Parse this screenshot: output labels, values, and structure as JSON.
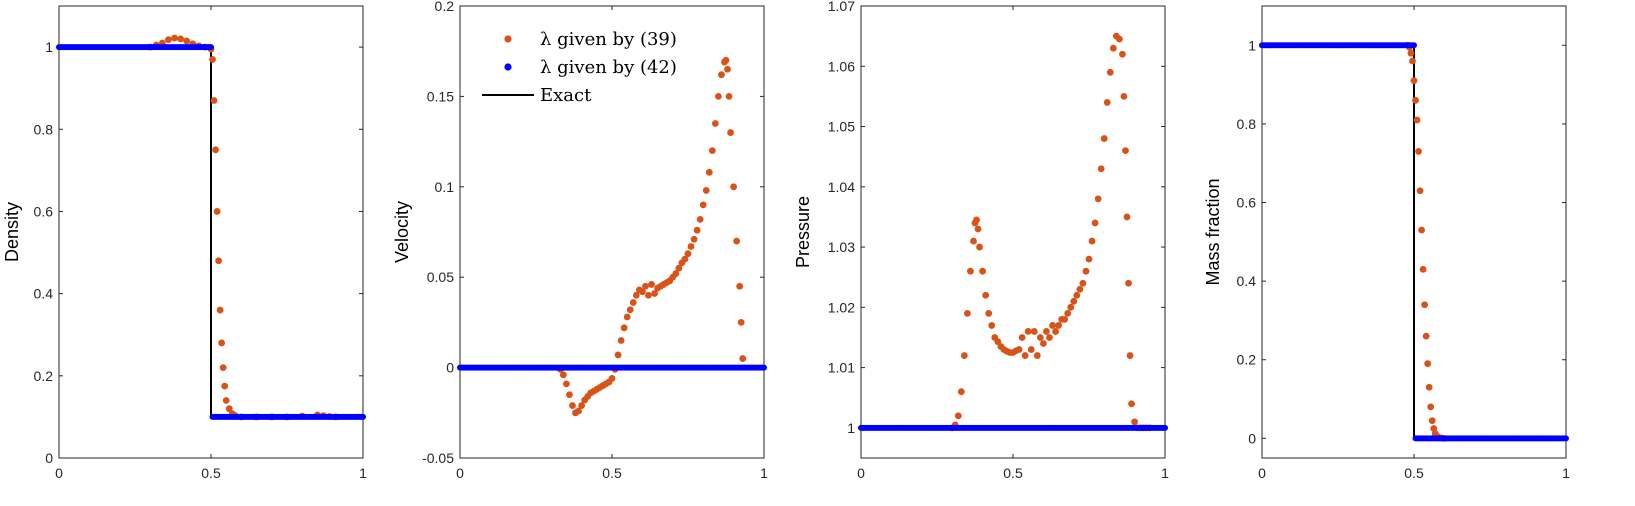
{
  "colors": {
    "orange": "#D95319",
    "blue": "#0000FF",
    "exact": "#000000",
    "axis": "#262626"
  },
  "legend": [
    {
      "label": "λ given by (39)",
      "kind": "marker",
      "color": "#D95319"
    },
    {
      "label": "λ given by (42)",
      "kind": "marker",
      "color": "#0000FF"
    },
    {
      "label": "Exact",
      "kind": "line",
      "color": "#000000"
    }
  ],
  "chart_data": [
    {
      "type": "scatter",
      "ylabel": "Density",
      "xlim": [
        0,
        1
      ],
      "ylim": [
        0,
        1.1
      ],
      "xticks": [
        0,
        0.5,
        1
      ],
      "xtick_labels": [
        "0",
        "0.5",
        "1"
      ],
      "yticks": [
        0,
        0.2,
        0.4,
        0.6,
        0.8,
        1
      ],
      "ytick_labels": [
        "0",
        "0.2",
        "0.4",
        "0.6",
        "0.8",
        "1"
      ],
      "exact": {
        "x": [
          0,
          0.5,
          0.5,
          1
        ],
        "y": [
          1,
          1,
          0.1,
          0.1
        ]
      },
      "series_blue_desc": {
        "name": "λ given by (42)",
        "segments": [
          [
            0,
            0.5,
            1
          ],
          [
            0.5,
            1,
            0.1
          ]
        ],
        "jump": {
          "x": 0.5,
          "from": 1,
          "to": 0.1
        }
      },
      "series_orange": {
        "name": "λ given by (39)",
        "x": [
          0.3,
          0.32,
          0.34,
          0.36,
          0.38,
          0.4,
          0.42,
          0.44,
          0.46,
          0.48,
          0.5,
          0.505,
          0.51,
          0.515,
          0.52,
          0.525,
          0.53,
          0.535,
          0.54,
          0.545,
          0.55,
          0.56,
          0.57,
          0.58,
          0.6,
          0.65,
          0.7,
          0.75,
          0.8,
          0.85,
          0.87,
          0.89,
          0.91
        ],
        "y": [
          1.0,
          1.005,
          1.01,
          1.018,
          1.022,
          1.02,
          1.015,
          1.008,
          1.003,
          1.0,
          0.995,
          0.97,
          0.87,
          0.75,
          0.6,
          0.48,
          0.36,
          0.28,
          0.22,
          0.175,
          0.14,
          0.12,
          0.108,
          0.103,
          0.1,
          0.1,
          0.1,
          0.1,
          0.102,
          0.105,
          0.103,
          0.101,
          0.1
        ]
      }
    },
    {
      "type": "scatter",
      "ylabel": "Velocity",
      "xlim": [
        0,
        1
      ],
      "ylim": [
        -0.05,
        0.2
      ],
      "xticks": [
        0,
        0.5,
        1
      ],
      "xtick_labels": [
        "0",
        "0.5",
        "1"
      ],
      "yticks": [
        -0.05,
        0,
        0.05,
        0.1,
        0.15,
        0.2
      ],
      "ytick_labels": [
        "-0.05",
        "0",
        "0.05",
        "0.1",
        "0.15",
        "0.2"
      ],
      "exact": {
        "x": [
          0,
          1
        ],
        "y": [
          0,
          0
        ]
      },
      "series_blue_desc": {
        "name": "λ given by (42)",
        "value": 0
      },
      "series_orange": {
        "name": "λ given by (39)",
        "x": [
          0.33,
          0.34,
          0.35,
          0.36,
          0.37,
          0.38,
          0.39,
          0.4,
          0.41,
          0.42,
          0.43,
          0.44,
          0.45,
          0.46,
          0.47,
          0.48,
          0.49,
          0.5,
          0.51,
          0.52,
          0.53,
          0.54,
          0.55,
          0.56,
          0.57,
          0.58,
          0.59,
          0.6,
          0.61,
          0.62,
          0.63,
          0.64,
          0.65,
          0.66,
          0.67,
          0.68,
          0.69,
          0.7,
          0.71,
          0.72,
          0.73,
          0.74,
          0.75,
          0.76,
          0.77,
          0.78,
          0.79,
          0.8,
          0.81,
          0.82,
          0.83,
          0.84,
          0.85,
          0.86,
          0.87,
          0.875,
          0.88,
          0.885,
          0.89,
          0.9,
          0.91,
          0.92,
          0.925,
          0.93
        ],
        "y": [
          -0.001,
          -0.004,
          -0.009,
          -0.015,
          -0.021,
          -0.025,
          -0.024,
          -0.021,
          -0.018,
          -0.016,
          -0.014,
          -0.013,
          -0.012,
          -0.011,
          -0.01,
          -0.009,
          -0.008,
          -0.006,
          -0.001,
          0.007,
          0.015,
          0.022,
          0.028,
          0.032,
          0.036,
          0.04,
          0.043,
          0.042,
          0.045,
          0.04,
          0.046,
          0.041,
          0.044,
          0.045,
          0.046,
          0.047,
          0.048,
          0.05,
          0.052,
          0.055,
          0.058,
          0.06,
          0.063,
          0.067,
          0.071,
          0.076,
          0.082,
          0.09,
          0.098,
          0.108,
          0.12,
          0.135,
          0.15,
          0.162,
          0.169,
          0.17,
          0.165,
          0.15,
          0.13,
          0.1,
          0.07,
          0.045,
          0.025,
          0.005
        ]
      }
    },
    {
      "type": "scatter",
      "ylabel": "Pressure",
      "xlim": [
        0,
        1
      ],
      "ylim": [
        0.995,
        1.07
      ],
      "xticks": [
        0,
        0.5,
        1
      ],
      "xtick_labels": [
        "0",
        "0.5",
        "1"
      ],
      "yticks": [
        1,
        1.01,
        1.02,
        1.03,
        1.04,
        1.05,
        1.06,
        1.07
      ],
      "ytick_labels": [
        "1",
        "1.01",
        "1.02",
        "1.03",
        "1.04",
        "1.05",
        "1.06",
        "1.07"
      ],
      "exact": {
        "x": [
          0,
          1
        ],
        "y": [
          1,
          1
        ]
      },
      "series_blue_desc": {
        "name": "λ given by (42)",
        "value": 1
      },
      "series_orange": {
        "name": "λ given by (39)",
        "x": [
          0.3,
          0.31,
          0.32,
          0.33,
          0.34,
          0.35,
          0.36,
          0.37,
          0.375,
          0.38,
          0.385,
          0.39,
          0.4,
          0.41,
          0.42,
          0.43,
          0.44,
          0.45,
          0.46,
          0.47,
          0.48,
          0.49,
          0.5,
          0.51,
          0.52,
          0.53,
          0.54,
          0.55,
          0.56,
          0.57,
          0.58,
          0.59,
          0.6,
          0.61,
          0.62,
          0.63,
          0.64,
          0.65,
          0.66,
          0.67,
          0.68,
          0.69,
          0.7,
          0.71,
          0.72,
          0.73,
          0.74,
          0.75,
          0.76,
          0.77,
          0.78,
          0.79,
          0.8,
          0.81,
          0.82,
          0.83,
          0.84,
          0.85,
          0.86,
          0.865,
          0.87,
          0.875,
          0.88,
          0.885,
          0.89,
          0.9,
          0.91,
          0.92,
          0.93,
          0.94,
          0.95
        ],
        "y": [
          1.0,
          1.0005,
          1.002,
          1.006,
          1.012,
          1.019,
          1.026,
          1.031,
          1.034,
          1.0345,
          1.033,
          1.03,
          1.026,
          1.022,
          1.019,
          1.017,
          1.015,
          1.0143,
          1.0135,
          1.013,
          1.0127,
          1.0125,
          1.0125,
          1.0128,
          1.013,
          1.015,
          1.012,
          1.016,
          1.013,
          1.016,
          1.012,
          1.015,
          1.014,
          1.016,
          1.015,
          1.017,
          1.016,
          1.017,
          1.018,
          1.018,
          1.019,
          1.02,
          1.021,
          1.022,
          1.023,
          1.024,
          1.026,
          1.028,
          1.031,
          1.034,
          1.038,
          1.043,
          1.048,
          1.054,
          1.059,
          1.063,
          1.065,
          1.0645,
          1.062,
          1.055,
          1.046,
          1.035,
          1.024,
          1.012,
          1.004,
          1.001,
          1.0,
          1.0,
          1.0,
          1.0,
          1.0
        ]
      }
    },
    {
      "type": "scatter",
      "ylabel": "Mass fraction",
      "xlim": [
        0,
        1
      ],
      "ylim": [
        -0.05,
        1.1
      ],
      "xticks": [
        0,
        0.5,
        1
      ],
      "xtick_labels": [
        "0",
        "0.5",
        "1"
      ],
      "yticks": [
        0,
        0.2,
        0.4,
        0.6,
        0.8,
        1
      ],
      "ytick_labels": [
        "0",
        "0.2",
        "0.4",
        "0.6",
        "0.8",
        "1"
      ],
      "exact": {
        "x": [
          0,
          0.5,
          0.5,
          1
        ],
        "y": [
          1,
          1,
          0,
          0
        ]
      },
      "series_blue_desc": {
        "name": "λ given by (42)",
        "jump": {
          "x": 0.5,
          "from": 1,
          "to": 0
        }
      },
      "series_orange": {
        "name": "λ given by (39)",
        "x": [
          0.48,
          0.485,
          0.49,
          0.495,
          0.5,
          0.505,
          0.51,
          0.515,
          0.52,
          0.525,
          0.53,
          0.535,
          0.54,
          0.545,
          0.55,
          0.555,
          0.56,
          0.565,
          0.57,
          0.575,
          0.58,
          0.59,
          0.6
        ],
        "y": [
          1.0,
          0.995,
          0.98,
          0.96,
          0.91,
          0.86,
          0.81,
          0.73,
          0.63,
          0.53,
          0.43,
          0.34,
          0.26,
          0.19,
          0.13,
          0.08,
          0.045,
          0.025,
          0.012,
          0.006,
          0.003,
          0.001,
          0.0
        ]
      }
    }
  ]
}
